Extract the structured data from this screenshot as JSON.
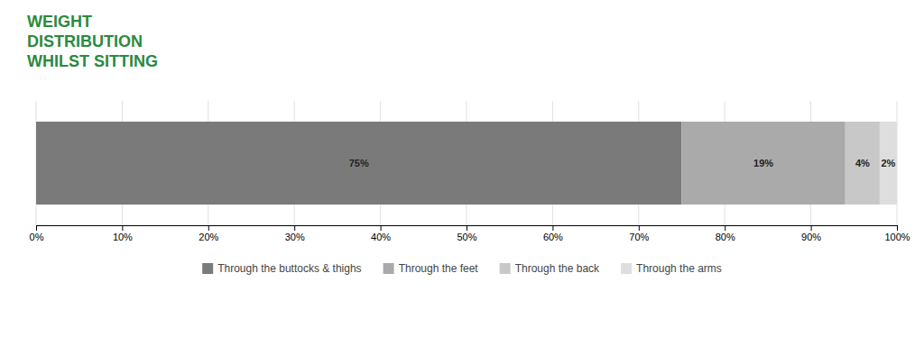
{
  "chart_data": {
    "type": "bar",
    "orientation": "horizontal",
    "stacked": true,
    "title": "WEIGHT\nDISTRIBUTION\nWHILST SITTING",
    "categories": [
      null
    ],
    "series": [
      {
        "name": "Through the buttocks & thighs",
        "color": "#7a7a7a",
        "values": [
          75
        ],
        "value_labels": [
          "75%"
        ]
      },
      {
        "name": "Through the feet",
        "color": "#aaaaaa",
        "values": [
          19
        ],
        "value_labels": [
          "19%"
        ]
      },
      {
        "name": "Through the back",
        "color": "#c8c8c8",
        "values": [
          4
        ],
        "value_labels": [
          "4%"
        ]
      },
      {
        "name": "Through the arms",
        "color": "#dedede",
        "values": [
          2
        ],
        "value_labels": [
          "2%"
        ]
      }
    ],
    "xlim": [
      0,
      100
    ],
    "xticks": [
      {
        "value": 0,
        "label": "0%"
      },
      {
        "value": 10,
        "label": "10%"
      },
      {
        "value": 20,
        "label": "20%"
      },
      {
        "value": 30,
        "label": "30%"
      },
      {
        "value": 40,
        "label": "40%"
      },
      {
        "value": 50,
        "label": "50%"
      },
      {
        "value": 60,
        "label": "60%"
      },
      {
        "value": 70,
        "label": "70%"
      },
      {
        "value": 80,
        "label": "80%"
      },
      {
        "value": 90,
        "label": "90%"
      },
      {
        "value": 100,
        "label": "100%"
      }
    ],
    "grid": true,
    "data_labels": true,
    "legend": "bottom",
    "tick_labels": "x"
  }
}
